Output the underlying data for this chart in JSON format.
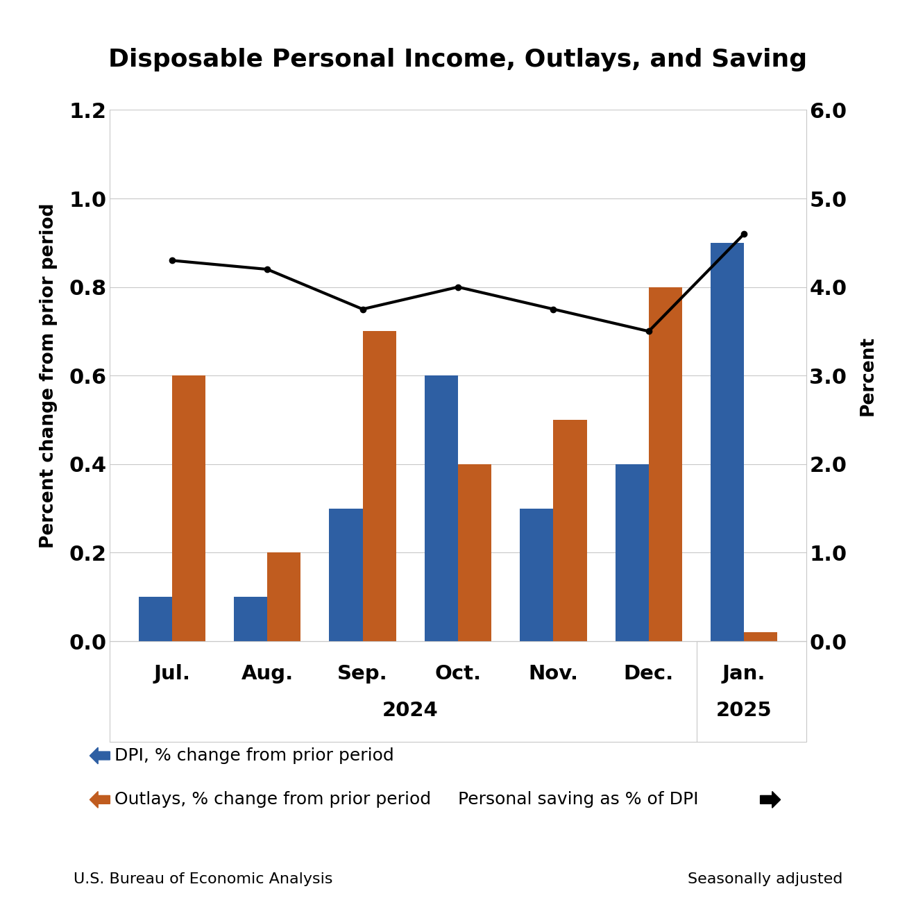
{
  "title": "Disposable Personal Income, Outlays, and Saving",
  "months": [
    "Jul.",
    "Aug.",
    "Sep.",
    "Oct.",
    "Nov.",
    "Dec.",
    "Jan."
  ],
  "dpi_values": [
    0.1,
    0.1,
    0.3,
    0.6,
    0.3,
    0.4,
    0.9
  ],
  "outlays_values": [
    0.6,
    0.2,
    0.7,
    0.4,
    0.5,
    0.8,
    0.02
  ],
  "saving_values": [
    4.3,
    4.2,
    3.75,
    4.0,
    3.75,
    3.5,
    4.6
  ],
  "dpi_color": "#2E5FA3",
  "outlays_color": "#C05C1F",
  "saving_color": "#000000",
  "left_ylim": [
    0.0,
    1.2
  ],
  "left_yticks": [
    0.0,
    0.2,
    0.4,
    0.6,
    0.8,
    1.0,
    1.2
  ],
  "right_ylim": [
    0.0,
    6.0
  ],
  "right_yticks": [
    0.0,
    1.0,
    2.0,
    3.0,
    4.0,
    5.0,
    6.0
  ],
  "ylabel_left": "Percent change from prior period",
  "ylabel_right": "Percent",
  "legend_dpi": "DPI, % change from prior period",
  "legend_outlays": "Outlays, % change from prior period",
  "legend_saving": "Personal saving as % of DPI",
  "source": "U.S. Bureau of Economic Analysis",
  "note": "Seasonally adjusted",
  "background_color": "#ffffff",
  "bar_width": 0.35,
  "grid_color": "#c8c8c8",
  "spine_color": "#c8c8c8"
}
